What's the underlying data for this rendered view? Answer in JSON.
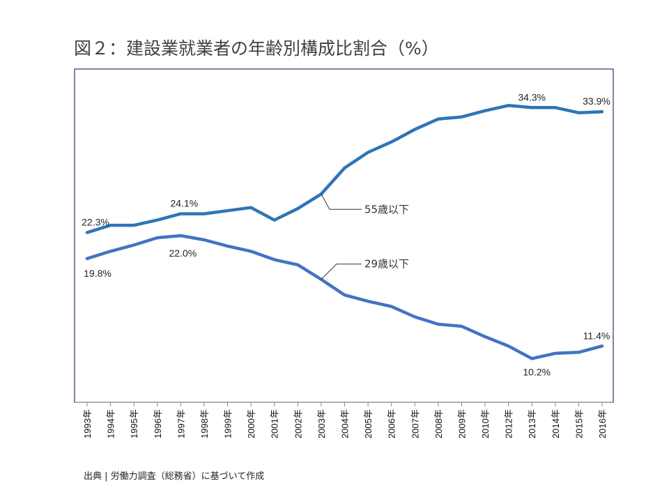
{
  "title": "図２：建設業就業者の年齢別構成比割合（%）",
  "source": "出典 | 労働力調査（総務省）に基づいて作成",
  "chart_data": {
    "type": "line",
    "title": "図２：建設業就業者の年齢別構成比割合（%）",
    "xlabel": "",
    "ylabel": "",
    "ylim": [
      6,
      38
    ],
    "grid": false,
    "categories": [
      "1993年",
      "1994年",
      "1995年",
      "1996年",
      "1997年",
      "1998年",
      "1999年",
      "2000年",
      "2001年",
      "2002年",
      "2003年",
      "2004年",
      "2005年",
      "2006年",
      "2007年",
      "2008年",
      "2009年",
      "2010年",
      "2012年",
      "2013年",
      "2014年",
      "2015年",
      "2016年"
    ],
    "series": [
      {
        "name": "55歳以下",
        "color": "#2e75b6",
        "values": [
          22.3,
          23.0,
          23.0,
          23.5,
          24.1,
          24.1,
          24.4,
          24.7,
          23.5,
          24.6,
          26.0,
          28.5,
          30.0,
          31.0,
          32.2,
          33.2,
          33.4,
          34.0,
          34.5,
          34.3,
          34.3,
          33.8,
          33.9
        ]
      },
      {
        "name": "29歳以下",
        "color": "#4472c4",
        "values": [
          19.8,
          20.5,
          21.1,
          21.8,
          22.0,
          21.6,
          21.0,
          20.5,
          19.7,
          19.2,
          17.8,
          16.3,
          15.7,
          15.2,
          14.2,
          13.5,
          13.3,
          12.3,
          11.4,
          10.2,
          10.7,
          10.8,
          11.4
        ]
      }
    ],
    "data_labels": [
      {
        "series": 0,
        "index": 0,
        "text": "22.3%"
      },
      {
        "series": 0,
        "index": 4,
        "text": "24.1%"
      },
      {
        "series": 0,
        "index": 19,
        "text": "34.3%"
      },
      {
        "series": 0,
        "index": 22,
        "text": "33.9%"
      },
      {
        "series": 1,
        "index": 0,
        "text": "19.8%"
      },
      {
        "series": 1,
        "index": 4,
        "text": "22.0%"
      },
      {
        "series": 1,
        "index": 19,
        "text": "10.2%"
      },
      {
        "series": 1,
        "index": 22,
        "text": "11.4%"
      }
    ],
    "annotations": [
      {
        "series": 0,
        "index": 10,
        "text": "55歳以下"
      },
      {
        "series": 1,
        "index": 10,
        "text": "29歳以下"
      }
    ]
  }
}
